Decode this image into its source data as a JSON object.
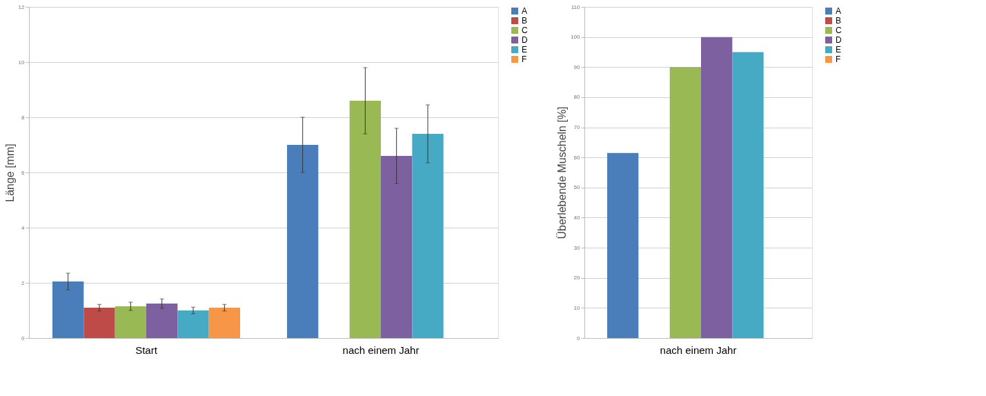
{
  "chart_data": [
    {
      "type": "bar",
      "ylabel": "Länge [mm]",
      "categories": [
        "Start",
        "nach einem Jahr"
      ],
      "ylim": [
        0,
        12
      ],
      "yticks": [
        0,
        2,
        4,
        6,
        8,
        10,
        12
      ],
      "grid": "y",
      "legend": "right",
      "series": [
        {
          "name": "A",
          "color": "#4a7ebb",
          "values": [
            2.05,
            7.0
          ],
          "errors": [
            0.3,
            1.0
          ]
        },
        {
          "name": "B",
          "color": "#be4b48",
          "values": [
            1.1,
            null
          ],
          "errors": [
            0.12,
            null
          ]
        },
        {
          "name": "C",
          "color": "#98b954",
          "values": [
            1.15,
            8.6
          ],
          "errors": [
            0.15,
            1.2
          ]
        },
        {
          "name": "D",
          "color": "#7d60a0",
          "values": [
            1.25,
            6.6
          ],
          "errors": [
            0.17,
            1.0
          ]
        },
        {
          "name": "E",
          "color": "#46aac5",
          "values": [
            1.0,
            7.4
          ],
          "errors": [
            0.12,
            1.05
          ]
        },
        {
          "name": "F",
          "color": "#f79646",
          "values": [
            1.1,
            null
          ],
          "errors": [
            0.12,
            null
          ]
        }
      ]
    },
    {
      "type": "bar",
      "ylabel": "Überlebende Muscheln [%]",
      "categories": [
        "nach einem Jahr"
      ],
      "ylim": [
        0,
        110
      ],
      "yticks": [
        0,
        10,
        20,
        30,
        40,
        50,
        60,
        70,
        80,
        90,
        100,
        110
      ],
      "grid": "y",
      "legend": "right",
      "series": [
        {
          "name": "A",
          "color": "#4a7ebb",
          "values": [
            61.5
          ]
        },
        {
          "name": "B",
          "color": "#be4b48",
          "values": [
            null
          ]
        },
        {
          "name": "C",
          "color": "#98b954",
          "values": [
            90
          ]
        },
        {
          "name": "D",
          "color": "#7d60a0",
          "values": [
            100
          ]
        },
        {
          "name": "E",
          "color": "#46aac5",
          "values": [
            95
          ]
        },
        {
          "name": "F",
          "color": "#f79646",
          "values": [
            null
          ]
        }
      ]
    }
  ]
}
